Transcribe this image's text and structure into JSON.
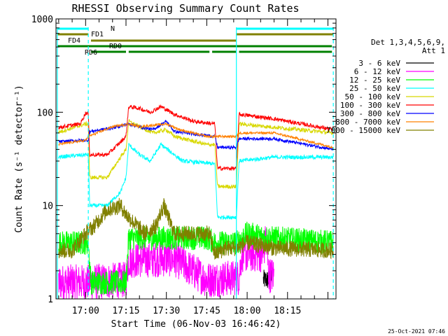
{
  "chart_data": {
    "type": "line",
    "title": "RHESSI Observing Summary Count Rates",
    "xlabel": "Start Time (06-Nov-03 16:46:42)",
    "ylabel": "Count Rate (s⁻¹ detector⁻¹)",
    "yscale": "log",
    "ylim": [
      1,
      1000
    ],
    "yticks": [
      "1",
      "10",
      "100",
      "1000"
    ],
    "xlim_minutes": [
      -11,
      93
    ],
    "xticks": [
      "17:00",
      "17:15",
      "17:30",
      "17:45",
      "18:00",
      "18:15"
    ],
    "xtick_minutes": [
      0,
      15,
      30,
      45,
      60,
      75
    ],
    "grid": false,
    "legend_position": "right",
    "legend_header": [
      "Det 1,3,4,5,6,9,",
      "Att 1"
    ],
    "timestamp": "25-Oct-2021 07:46",
    "series": [
      {
        "name": "3 - 6 keV",
        "color": "#000000"
      },
      {
        "name": "6 - 12 keV",
        "color": "#ff00ff"
      },
      {
        "name": "12 - 25 keV",
        "color": "#00ff00"
      },
      {
        "name": "25 - 50 keV",
        "color": "#00ffff"
      },
      {
        "name": "50 - 100 keV",
        "color": "#d8d800"
      },
      {
        "name": "100 - 300 keV",
        "color": "#ff0000"
      },
      {
        "name": "300 - 800 keV",
        "color": "#0000ff"
      },
      {
        "name": "800 - 7000 keV",
        "color": "#ff8000"
      },
      {
        "name": "7000 - 15000 keV",
        "color": "#808000"
      }
    ],
    "flag_bars": [
      {
        "label": "N",
        "color": "#00ffff",
        "segments": [
          [
            -10.5,
            1
          ],
          [
            56,
            92
          ]
        ]
      },
      {
        "label": "FD1",
        "color": "#808000",
        "segments": [
          [
            -10.5,
            1
          ],
          [
            56,
            92
          ]
        ]
      },
      {
        "label": "FD4",
        "color": "#808000",
        "segments": [
          [
            2,
            56
          ]
        ]
      },
      {
        "label": "RD0",
        "color": "#008000",
        "segments": [
          [
            -10.5,
            91.5
          ]
        ]
      },
      {
        "label": "RD6",
        "color": "#008000",
        "segments": [
          [
            2,
            15
          ],
          [
            16,
            46
          ],
          [
            47,
            56
          ],
          [
            57,
            91.5
          ]
        ]
      }
    ],
    "time_markers_minutes": [
      -10.5,
      1,
      56,
      92
    ],
    "time_markers_style": [
      "solid",
      "dashed",
      "solid",
      "dashed"
    ]
  }
}
